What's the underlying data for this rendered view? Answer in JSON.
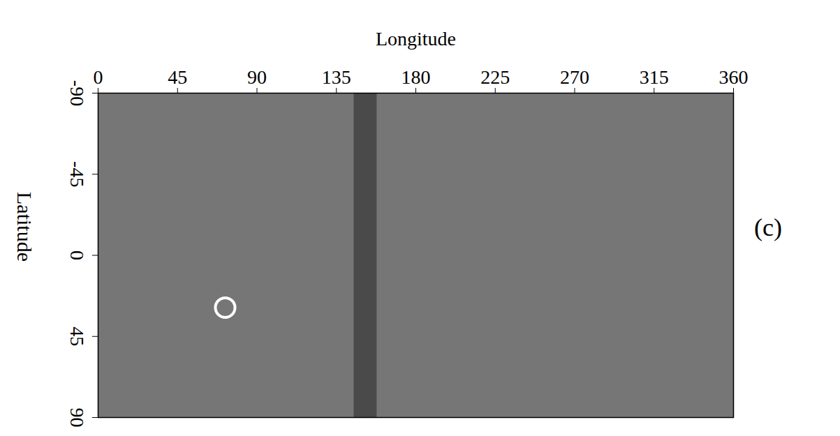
{
  "chart_data": {
    "type": "map",
    "xlabel": "Longitude",
    "ylabel": "Latitude",
    "panel": "(c)",
    "xlim": [
      0,
      360
    ],
    "xticks": [
      0,
      45,
      90,
      135,
      180,
      225,
      270,
      315,
      360
    ],
    "ylim": [
      -90,
      90
    ],
    "yticks": [
      -90,
      -45,
      0,
      45,
      90
    ],
    "color": "#767676",
    "regions": [
      {
        "x1": 145,
        "x2": 158,
        "y1": -90,
        "y2": 90,
        "color": "#4a4a4a"
      }
    ],
    "points": [
      {
        "x": 72,
        "y": 29,
        "color": "#ffffff",
        "marker": "ring"
      }
    ]
  }
}
